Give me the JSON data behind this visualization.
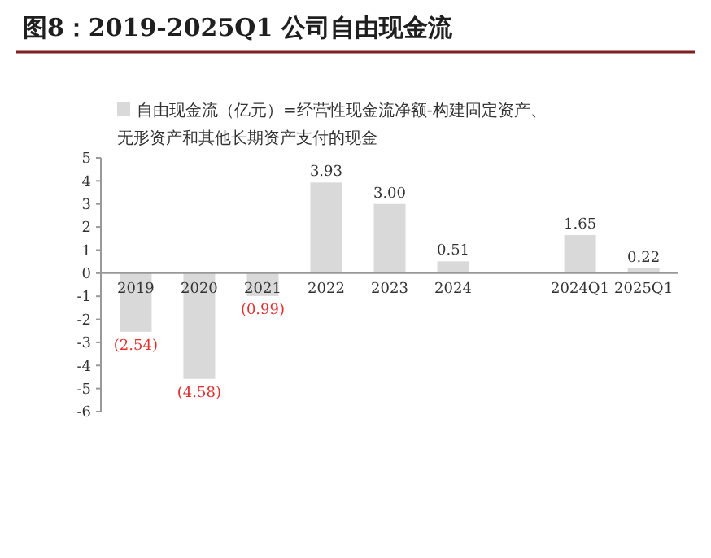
{
  "chart_data": {
    "type": "bar",
    "title": "图8：2019-2025Q1 公司自由现金流",
    "categories": [
      "2019",
      "2020",
      "2021",
      "2022",
      "2023",
      "2024",
      null,
      "2024Q1",
      "2025Q1"
    ],
    "series": [
      {
        "name": "自由现金流（亿元）=经营性现金流净额-构建固定资产、无形资产和其他长期资产支付的现金",
        "color": "#d9d9d9",
        "values": [
          -2.54,
          -4.58,
          -0.99,
          3.93,
          3.0,
          0.51,
          null,
          1.65,
          0.22
        ],
        "value_labels": [
          "(2.54)",
          "(4.58)",
          "(0.99)",
          "3.93",
          "3.00",
          "0.51",
          null,
          "1.65",
          "0.22"
        ]
      }
    ],
    "ylim": [
      -6,
      5
    ],
    "yticks": [
      -6,
      -5,
      -4,
      -3,
      -2,
      -1,
      0,
      1,
      2,
      3,
      4,
      5
    ],
    "legend": "top",
    "grid": false
  }
}
